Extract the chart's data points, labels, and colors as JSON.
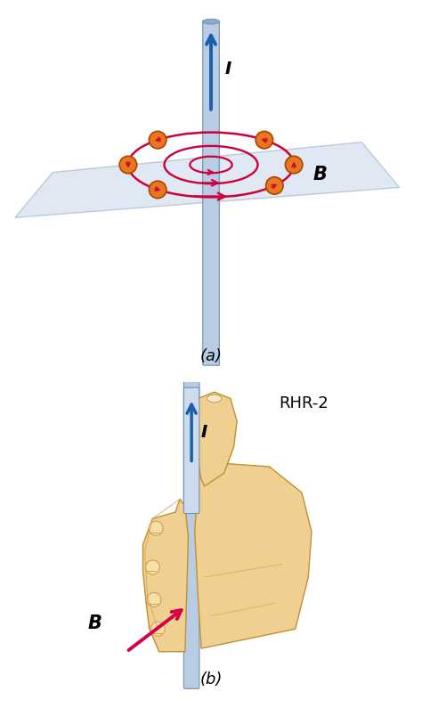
{
  "fig_width": 4.74,
  "fig_height": 7.95,
  "bg_color": "#ffffff",
  "panel_a_label": "(a)",
  "panel_b_label": "(b)",
  "wire_color": "#b8cce4",
  "wire_edge_color": "#7090b0",
  "wire_highlight": "#ddeeff",
  "arrow_color": "#1a5fa8",
  "ring_color": "#cc003a",
  "ball_color": "#e87820",
  "ball_edge_color": "#b04000",
  "plane_color": "#c8d8ea",
  "plane_edge_color": "#90aac0",
  "plane_alpha": 0.55,
  "label_I": "I",
  "label_B": "B",
  "label_RHR": "RHR-2",
  "hand_skin_color": "#f0d090",
  "hand_edge_color": "#c09030",
  "hand_line_color": "#d0a050",
  "B_arrow_color": "#d4004a",
  "knuckle_light": "#f5e0a8"
}
